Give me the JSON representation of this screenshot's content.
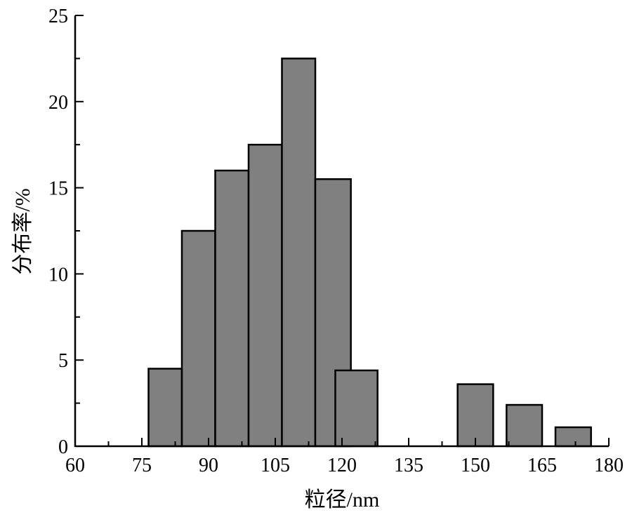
{
  "chart_data": {
    "type": "bar",
    "title": "",
    "xlabel": "粒径/nm",
    "ylabel": "分布率/%",
    "xlim": [
      60,
      180
    ],
    "ylim": [
      0,
      25
    ],
    "xticks": [
      60,
      75,
      90,
      105,
      120,
      135,
      150,
      165,
      180
    ],
    "yticks": [
      0,
      5,
      10,
      15,
      20,
      25
    ],
    "grid": false,
    "bar_color": "#808080",
    "bars": [
      {
        "left": 76.5,
        "right": 84,
        "value": 4.5
      },
      {
        "left": 84,
        "right": 91.5,
        "value": 12.5
      },
      {
        "left": 91.5,
        "right": 99,
        "value": 16
      },
      {
        "left": 99,
        "right": 106.5,
        "value": 17.5
      },
      {
        "left": 106.5,
        "right": 114,
        "value": 22.5
      },
      {
        "left": 114,
        "right": 122,
        "value": 15.5
      },
      {
        "left": 118.5,
        "right": 128,
        "value": 4.4
      },
      {
        "left": 146,
        "right": 154,
        "value": 3.6
      },
      {
        "left": 157,
        "right": 165,
        "value": 2.4
      },
      {
        "left": 168,
        "right": 176,
        "value": 1.1
      }
    ]
  }
}
